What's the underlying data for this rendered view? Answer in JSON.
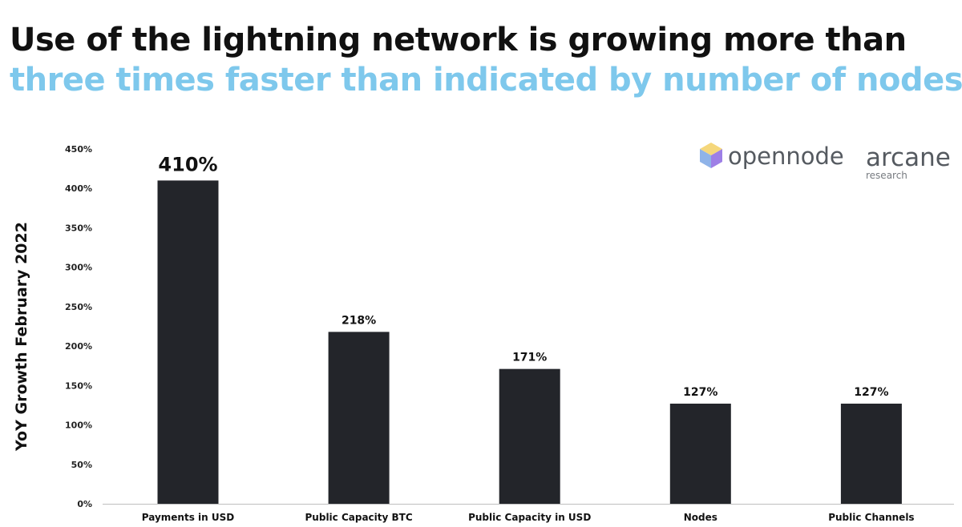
{
  "header": {
    "title_line1": "Use of the lightning network is growing more than",
    "title_line2": "three times faster than indicated by number of nodes",
    "title_line2_color": "#7ec8ec"
  },
  "logos": {
    "opennode": "opennode",
    "arcane": "arcane",
    "arcane_sub": "research"
  },
  "chart_data": {
    "type": "bar",
    "ylabel": "YoY Growth February 2022",
    "xlabel": "",
    "ylim": [
      0,
      450
    ],
    "yticks": [
      0,
      50,
      100,
      150,
      200,
      250,
      300,
      350,
      400,
      450
    ],
    "ytick_labels": [
      "0%",
      "50%",
      "100%",
      "150%",
      "200%",
      "250%",
      "300%",
      "350%",
      "400%",
      "450%"
    ],
    "categories": [
      "Payments in USD",
      "Public Capacity BTC",
      "Public Capacity in USD",
      "Nodes",
      "Public Channels"
    ],
    "values": [
      410,
      218,
      171,
      127,
      127
    ],
    "value_labels": [
      "410%",
      "218%",
      "171%",
      "127%",
      "127%"
    ],
    "bar_color": "#23252a",
    "grid": false
  }
}
